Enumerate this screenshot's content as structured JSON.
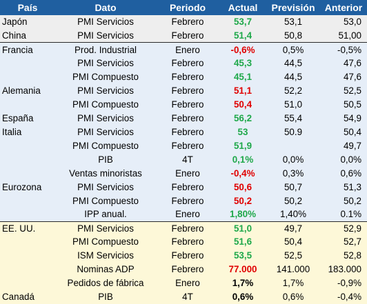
{
  "header": {
    "pais": "País",
    "dato": "Dato",
    "periodo": "Periodo",
    "actual": "Actual",
    "prevision": "Previsión",
    "anterior": "Anterior"
  },
  "colors": {
    "header_bg": "#1f5fa0",
    "green": "#1fa84a",
    "red": "#e00000",
    "asia_bg": "#eeeeee",
    "europe_bg": "#e6eef8",
    "americas_bg": "#fdf8d8"
  },
  "rows": [
    {
      "pais": "Japón",
      "dato": "PMI Servicios",
      "periodo": "Febrero",
      "actual": "53,7",
      "actual_color": "green",
      "prevision": "53,1",
      "anterior": "53,0",
      "group": "asia"
    },
    {
      "pais": "China",
      "dato": "PMI Servicios",
      "periodo": "Febrero",
      "actual": "51,4",
      "actual_color": "green",
      "prevision": "50,8",
      "anterior": "51,00",
      "group": "asia"
    },
    {
      "pais": "Francia",
      "dato": "Prod. Industrial",
      "periodo": "Enero",
      "actual": "-0,6%",
      "actual_color": "red",
      "prevision": "0,5%",
      "anterior": "-0,5%",
      "group": "eu"
    },
    {
      "pais": "",
      "dato": "PMI Servicios",
      "periodo": "Febrero",
      "actual": "45,3",
      "actual_color": "green",
      "prevision": "44,5",
      "anterior": "47,6",
      "group": "eu"
    },
    {
      "pais": "",
      "dato": "PMI Compuesto",
      "periodo": "Febrero",
      "actual": "45,1",
      "actual_color": "green",
      "prevision": "44,5",
      "anterior": "47,6",
      "group": "eu"
    },
    {
      "pais": "Alemania",
      "dato": "PMI Servicios",
      "periodo": "Febrero",
      "actual": "51,1",
      "actual_color": "red",
      "prevision": "52,2",
      "anterior": "52,5",
      "group": "eu"
    },
    {
      "pais": "",
      "dato": "PMI Compuesto",
      "periodo": "Febrero",
      "actual": "50,4",
      "actual_color": "red",
      "prevision": "51,0",
      "anterior": "50,5",
      "group": "eu"
    },
    {
      "pais": "España",
      "dato": "PMI Servicios",
      "periodo": "Febrero",
      "actual": "56,2",
      "actual_color": "green",
      "prevision": "55,4",
      "anterior": "54,9",
      "group": "eu"
    },
    {
      "pais": "Italia",
      "dato": "PMI Servicios",
      "periodo": "Febrero",
      "actual": "53",
      "actual_color": "green",
      "prevision": "50.9",
      "anterior": "50,4",
      "group": "eu"
    },
    {
      "pais": "",
      "dato": "PMI Compuesto",
      "periodo": "Febrero",
      "actual": "51,9",
      "actual_color": "green",
      "prevision": "",
      "anterior": "49,7",
      "group": "eu"
    },
    {
      "pais": "",
      "dato": "PIB",
      "periodo": "4T",
      "actual": "0,1%",
      "actual_color": "green",
      "prevision": "0,0%",
      "anterior": "0,0%",
      "group": "eu"
    },
    {
      "pais": "",
      "dato": "Ventas minoristas",
      "periodo": "Enero",
      "actual": "-0,4%",
      "actual_color": "red",
      "prevision": "0,3%",
      "anterior": "0,6%",
      "group": "eu"
    },
    {
      "pais": "Eurozona",
      "dato": "PMI Servicios",
      "periodo": "Febrero",
      "actual": "50,6",
      "actual_color": "red",
      "prevision": "50,7",
      "anterior": "51,3",
      "group": "eu"
    },
    {
      "pais": "",
      "dato": "PMI Compuesto",
      "periodo": "Febrero",
      "actual": "50,2",
      "actual_color": "red",
      "prevision": "50,2",
      "anterior": "50,2",
      "group": "eu"
    },
    {
      "pais": "",
      "dato": "IPP anual.",
      "periodo": "Enero",
      "actual": "1,80%",
      "actual_color": "green",
      "prevision": "1,40%",
      "anterior": "0.1%",
      "group": "eu"
    },
    {
      "pais": "EE. UU.",
      "dato": "PMI Servicios",
      "periodo": "Febrero",
      "actual": "51,0",
      "actual_color": "green",
      "prevision": "49,7",
      "anterior": "52,9",
      "group": "na"
    },
    {
      "pais": "",
      "dato": "PMI Compuesto",
      "periodo": "Febrero",
      "actual": "51,6",
      "actual_color": "green",
      "prevision": "50,4",
      "anterior": "52,7",
      "group": "na"
    },
    {
      "pais": "",
      "dato": "ISM Servicios",
      "periodo": "Febrero",
      "actual": "53,5",
      "actual_color": "green",
      "prevision": "52,5",
      "anterior": "52,8",
      "group": "na"
    },
    {
      "pais": "",
      "dato": "Nominas ADP",
      "periodo": "Febrero",
      "actual": "77.000",
      "actual_color": "red",
      "prevision": "141.000",
      "anterior": "183.000",
      "group": "na"
    },
    {
      "pais": "",
      "dato": "Pedidos de fábrica",
      "periodo": "Enero",
      "actual": "1,7%",
      "actual_color": "black",
      "prevision": "1,7%",
      "anterior": "-0,9%",
      "group": "na"
    },
    {
      "pais": "Canadá",
      "dato": "PIB",
      "periodo": "4T",
      "actual": "0,6%",
      "actual_color": "black",
      "prevision": "0,6%",
      "anterior": "-0,4%",
      "group": "na"
    }
  ]
}
